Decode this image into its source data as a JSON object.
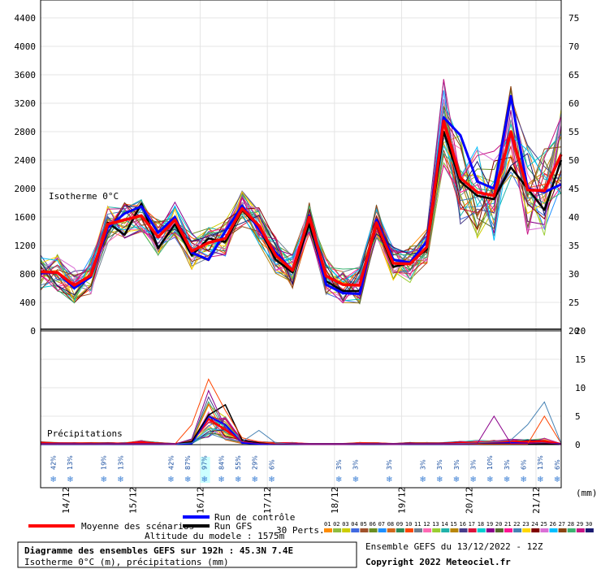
{
  "chart_data": [
    {
      "type": "line",
      "title": "Isotherme 0°C",
      "ylim": [
        0,
        4500
      ],
      "y_ticks": [
        0,
        400,
        800,
        1200,
        1600,
        2000,
        2400,
        2800,
        3200,
        3600,
        4000,
        4400
      ],
      "right_ticks": [
        20,
        25,
        30,
        35,
        40,
        45,
        50,
        55,
        60,
        65,
        70,
        75
      ],
      "x": [
        0,
        1,
        2,
        3,
        4,
        5,
        6,
        7,
        8,
        9,
        10,
        11,
        12,
        13,
        14,
        15,
        16,
        17,
        18,
        19,
        20,
        21,
        22,
        23,
        24,
        25,
        26,
        27,
        28,
        29,
        30,
        31
      ],
      "series": [
        {
          "name": "Moyenne des scénarios",
          "color": "#ff0000",
          "values": [
            830,
            820,
            640,
            780,
            1500,
            1560,
            1620,
            1320,
            1560,
            1120,
            1240,
            1300,
            1720,
            1480,
            1060,
            850,
            1600,
            770,
            650,
            640,
            1520,
            950,
            940,
            1180,
            2950,
            2150,
            1950,
            1900,
            2800,
            1980,
            1970,
            2480
          ]
        },
        {
          "name": "Run de contrôle",
          "color": "#0000ff",
          "values": [
            810,
            820,
            600,
            760,
            1450,
            1650,
            1750,
            1380,
            1600,
            1100,
            1000,
            1400,
            1760,
            1430,
            1100,
            850,
            1620,
            650,
            530,
            520,
            1560,
            1000,
            960,
            1260,
            3000,
            2750,
            2100,
            2000,
            3300,
            2000,
            1950,
            2060
          ]
        },
        {
          "name": "Run GFS",
          "color": "#000000",
          "values": [
            820,
            810,
            650,
            760,
            1520,
            1350,
            1790,
            1160,
            1500,
            1060,
            1300,
            1250,
            1700,
            1450,
            1000,
            820,
            1500,
            700,
            560,
            560,
            1500,
            900,
            950,
            1150,
            2800,
            2100,
            1900,
            1850,
            2300,
            2000,
            1700,
            2400
          ]
        }
      ],
      "labels": {
        "altitude": "Altitude du modele : 1575m",
        "perts": "30 Perts."
      },
      "member_ids": [
        "01",
        "02",
        "03",
        "04",
        "05",
        "06",
        "07",
        "08",
        "09",
        "10",
        "11",
        "12",
        "13",
        "14",
        "15",
        "16",
        "17",
        "18",
        "19",
        "20",
        "21",
        "22",
        "23",
        "24",
        "25",
        "26",
        "27",
        "28",
        "29",
        "30"
      ],
      "member_colors": [
        "#ff8c00",
        "#8fbc3f",
        "#cdcd00",
        "#4169e1",
        "#a0522d",
        "#6b8e23",
        "#1e90ff",
        "#d2691e",
        "#2e8b57",
        "#ff4500",
        "#708090",
        "#ff69b4",
        "#9acd32",
        "#20b2aa",
        "#b8860b",
        "#483d8b",
        "#dc143c",
        "#00ced1",
        "#8b008b",
        "#556b2f",
        "#ff1493",
        "#4682b4",
        "#ffd700",
        "#800000",
        "#da70d6",
        "#00bfff",
        "#8b4513",
        "#3cb371",
        "#c71585",
        "#191970"
      ]
    },
    {
      "type": "line",
      "title": "Précipitations",
      "ylim": [
        0,
        20
      ],
      "right_ticks": [
        0,
        5,
        10,
        15,
        20
      ],
      "x_tick_labels": [
        "14/12",
        "15/12",
        "16/12",
        "17/12",
        "18/12",
        "19/12",
        "20/12",
        "21/12"
      ],
      "x_unit": "(mm)",
      "series": [
        {
          "name": "Moyenne des scénarios",
          "color": "#ff0000",
          "values": [
            0.3,
            0.2,
            0.2,
            0.2,
            0.2,
            0.2,
            0.4,
            0.2,
            0.1,
            0.5,
            4.5,
            2.6,
            0.5,
            0.3,
            0.2,
            0.2,
            0.1,
            0.1,
            0.1,
            0.2,
            0.2,
            0.1,
            0.2,
            0.2,
            0.2,
            0.3,
            0.4,
            0.4,
            0.5,
            0.5,
            0.6,
            0.1
          ]
        },
        {
          "name": "Run de contrôle",
          "color": "#0000ff",
          "values": [
            0.1,
            0.1,
            0.1,
            0.1,
            0.1,
            0.1,
            0.1,
            0.1,
            0.1,
            0.2,
            5.0,
            3.5,
            0.3,
            0.1,
            0.1,
            0.1,
            0.1,
            0.1,
            0.1,
            0.1,
            0.1,
            0.1,
            0.1,
            0.1,
            0.1,
            0.1,
            0.1,
            0.2,
            0.3,
            0.2,
            0.2,
            0.1
          ]
        },
        {
          "name": "Run GFS",
          "color": "#000000",
          "values": [
            0.1,
            0.1,
            0.1,
            0.1,
            0.1,
            0.1,
            0.1,
            0.1,
            0.1,
            0.5,
            5.2,
            7.0,
            0.8,
            0.3,
            0.1,
            0.1,
            0.1,
            0.1,
            0.1,
            0.1,
            0.1,
            0.1,
            0.1,
            0.1,
            0.1,
            0.1,
            0.1,
            0.1,
            0.1,
            0.1,
            0.1,
            0.1
          ]
        },
        {
          "name": "10",
          "color": "#ff4500",
          "values": [
            0.1,
            0.1,
            0.1,
            0.1,
            0.1,
            0.1,
            0.1,
            0.1,
            0.1,
            3.5,
            11.5,
            6.0,
            1.2,
            0.5,
            0.2,
            0.1,
            0.1,
            0.1,
            0.1,
            0.1,
            0.1,
            0.1,
            0.1,
            0.1,
            0.1,
            0.1,
            0.1,
            0.1,
            0.1,
            0.1,
            5.0,
            0.2
          ]
        },
        {
          "name": "22",
          "color": "#4682b4",
          "values": [
            0.1,
            0.1,
            0.1,
            0.1,
            0.1,
            0.1,
            0.1,
            0.1,
            0.1,
            0.3,
            2.0,
            1.0,
            0.5,
            2.5,
            0.3,
            0.1,
            0.1,
            0.1,
            0.1,
            0.1,
            0.1,
            0.1,
            0.1,
            0.1,
            0.1,
            0.2,
            0.3,
            0.5,
            0.8,
            3.5,
            7.5,
            0.2
          ]
        },
        {
          "name": "19",
          "color": "#8b008b",
          "values": [
            0.1,
            0.1,
            0.1,
            0.1,
            0.1,
            0.1,
            0.1,
            0.1,
            0.1,
            1.0,
            9.5,
            3.0,
            0.5,
            0.2,
            0.1,
            0.1,
            0.1,
            0.1,
            0.1,
            0.1,
            0.1,
            0.1,
            0.1,
            0.1,
            0.1,
            0.1,
            0.2,
            5.0,
            0.2,
            0.2,
            0.3,
            0.1
          ]
        }
      ],
      "snow_pct": [
        "42%",
        "13%",
        "19%",
        "13%",
        "42%",
        "87%",
        "97%",
        "84%",
        "55%",
        "29%",
        "6%",
        "3%",
        "3%",
        "3%",
        "3%",
        "3%",
        "3%",
        "3%",
        "10%",
        "3%",
        "6%",
        "13%",
        "6%"
      ],
      "snow_pct_x": [
        0.8,
        1.8,
        3.8,
        4.8,
        7.8,
        8.8,
        9.8,
        10.8,
        11.8,
        12.8,
        13.8,
        17.8,
        18.8,
        20.8,
        22.8,
        23.8,
        24.8,
        25.8,
        26.8,
        27.8,
        28.8,
        29.8,
        30.8
      ]
    }
  ],
  "legend": {
    "mean": "Moyenne des scénarios",
    "control": "Run de contrôle",
    "gfs": "Run GFS"
  },
  "footer": {
    "title": "Diagramme des ensembles GEFS sur 192h : 45.3N 7.4E",
    "subtitle": "Isotherme 0°C (m), précipitations (mm)",
    "ensemble": "Ensemble GEFS du 13/12/2022 - 12Z",
    "copyright": "Copyright 2022 Meteociel.fr"
  }
}
